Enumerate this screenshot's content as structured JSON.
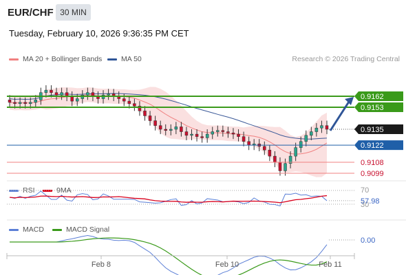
{
  "header": {
    "symbol": "EUR/CHF",
    "timeframe": "30 MIN",
    "datetime": "Tuesday, February 10, 2026 9:36:35 PM CET"
  },
  "legend": {
    "ma20": "MA 20 + Bollinger Bands",
    "ma50": "MA 50",
    "credit": "Research © 2026 Trading Central"
  },
  "colors": {
    "up": "#2ca58d",
    "down": "#c8102e",
    "support": "#1f5fa8",
    "resistance": "#3a9a1a",
    "ma50": "#3b5998",
    "band": "#f6c6c6"
  },
  "chart_data": [
    {
      "type": "line",
      "panel": "price",
      "levels": [
        {
          "value": "0.9162",
          "kind": "resistance"
        },
        {
          "value": "0.9153",
          "kind": "resistance"
        },
        {
          "value": "0.9135",
          "kind": "current"
        },
        {
          "value": "0.9122",
          "kind": "support"
        },
        {
          "value": "0.9108",
          "kind": "support-minor"
        },
        {
          "value": "0.9099",
          "kind": "support-minor"
        }
      ],
      "series": [
        {
          "name": "MA 20 + Bollinger Bands"
        },
        {
          "name": "MA 50"
        }
      ],
      "close": [
        0.9157,
        0.9156,
        0.9157,
        0.9156,
        0.9157,
        0.9159,
        0.9165,
        0.9167,
        0.9165,
        0.9163,
        0.9165,
        0.9162,
        0.9158,
        0.916,
        0.9163,
        0.9165,
        0.9162,
        0.916,
        0.9163,
        0.9164,
        0.9162,
        0.916,
        0.9158,
        0.9156,
        0.9154,
        0.915,
        0.9146,
        0.9142,
        0.9138,
        0.9135,
        0.9134,
        0.9135,
        0.9137,
        0.9133,
        0.913,
        0.9131,
        0.9129,
        0.9128,
        0.9131,
        0.9133,
        0.9134,
        0.9133,
        0.9132,
        0.9131,
        0.9129,
        0.9125,
        0.9122,
        0.9123,
        0.9121,
        0.9118,
        0.9113,
        0.9108,
        0.9101,
        0.9107,
        0.9113,
        0.912,
        0.9125,
        0.913,
        0.9133,
        0.9136,
        0.9138,
        0.9135
      ]
    },
    {
      "type": "line",
      "panel": "rsi",
      "series": [
        {
          "name": "RSI"
        },
        {
          "name": "9MA"
        }
      ],
      "ticks": [
        "70",
        "30"
      ],
      "last": "57.98"
    },
    {
      "type": "line",
      "panel": "macd",
      "series": [
        {
          "name": "MACD"
        },
        {
          "name": "MACD Signal"
        }
      ],
      "last": "0.00"
    }
  ],
  "xaxis": {
    "ticks": [
      "Feb 8",
      "Feb 10",
      "Feb 11"
    ]
  }
}
